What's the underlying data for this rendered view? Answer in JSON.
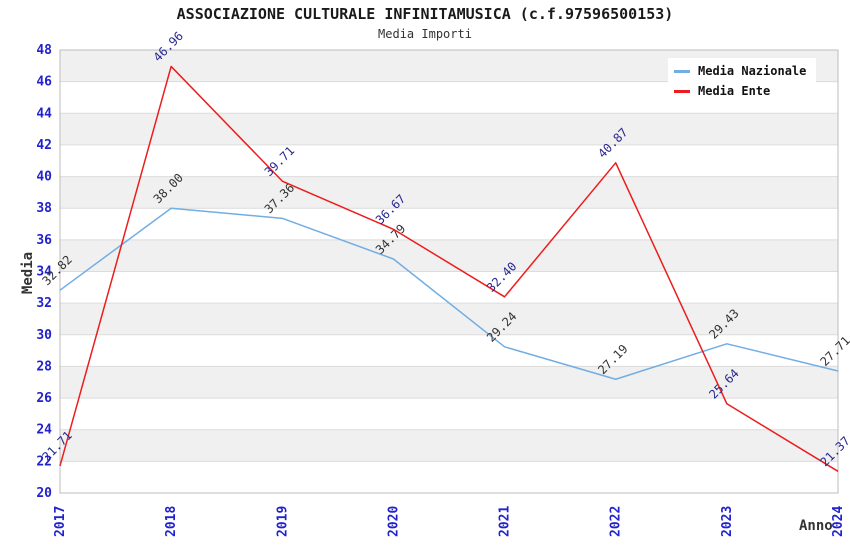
{
  "header": {
    "title": "ASSOCIAZIONE CULTURALE INFINITAMUSICA (c.f.97596500153)",
    "subtitle": "Media Importi"
  },
  "chart_data": {
    "type": "line",
    "title": "ASSOCIAZIONE CULTURALE INFINITAMUSICA (c.f.97596500153)",
    "subtitle": "Media Importi",
    "categories": [
      "2017",
      "2018",
      "2019",
      "2020",
      "2021",
      "2022",
      "2023",
      "2024"
    ],
    "series": [
      {
        "name": "Media Nazionale",
        "color": "#72ade4",
        "label_color": "#333333",
        "values": [
          32.82,
          38.0,
          37.36,
          34.79,
          29.24,
          27.19,
          29.43,
          27.71
        ]
      },
      {
        "name": "Media Ente",
        "color": "#ec1d1d",
        "label_color": "#28288f",
        "values": [
          21.71,
          46.96,
          39.71,
          36.67,
          32.4,
          40.87,
          25.64,
          21.37
        ]
      }
    ],
    "xlabel": "Anno",
    "ylabel": "Media",
    "ylim": [
      20,
      48
    ],
    "ytick_step": 2,
    "legend_position": "top-right",
    "grid": "horizontal-banded",
    "colors": {
      "tick_label": "#2222cc",
      "band": "#f0f0f0",
      "gridline": "#dcdcdc",
      "plot_border": "#bcbcbc"
    }
  }
}
